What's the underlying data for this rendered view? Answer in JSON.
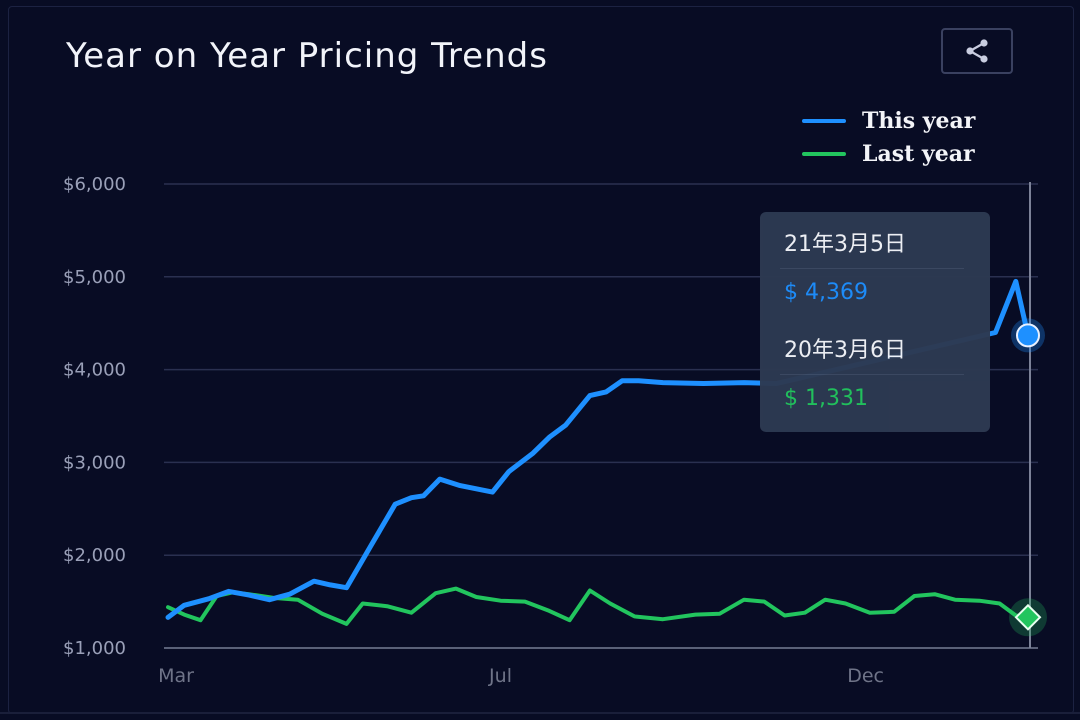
{
  "header": {
    "title": "Year on Year Pricing Trends"
  },
  "share_button": {
    "icon": "share-icon"
  },
  "legend": [
    {
      "label": "This year",
      "color": "#1e90ff"
    },
    {
      "label": "Last year",
      "color": "#22c55e"
    }
  ],
  "tooltip": {
    "this_year_date": "21年3月5日",
    "this_year_value": "$ 4,369",
    "last_year_date": "20年3月6日",
    "last_year_value": "$ 1,331"
  },
  "chart_data": {
    "type": "line",
    "y_ticks": [
      "$6,000",
      "$5,000",
      "$4,000",
      "$3,000",
      "$2,000",
      "$1,000"
    ],
    "ylim": [
      1000,
      6000
    ],
    "x_ticks": [
      {
        "label": "Mar",
        "x": 0
      },
      {
        "label": "Jul",
        "x": 4
      },
      {
        "label": "Dec",
        "x": 8.5
      }
    ],
    "xlim": [
      0,
      10.6
    ],
    "grid": true,
    "legend_position": "top-right",
    "series": [
      {
        "name": "This year",
        "color": "#1e90ff",
        "points": [
          [
            0,
            1330
          ],
          [
            0.2,
            1460
          ],
          [
            0.5,
            1530
          ],
          [
            0.75,
            1610
          ],
          [
            1.0,
            1570
          ],
          [
            1.25,
            1520
          ],
          [
            1.5,
            1580
          ],
          [
            1.8,
            1720
          ],
          [
            2.0,
            1680
          ],
          [
            2.2,
            1650
          ],
          [
            2.5,
            2100
          ],
          [
            2.8,
            2550
          ],
          [
            3.0,
            2620
          ],
          [
            3.15,
            2640
          ],
          [
            3.35,
            2820
          ],
          [
            3.6,
            2750
          ],
          [
            4.0,
            2680
          ],
          [
            4.2,
            2900
          ],
          [
            4.5,
            3100
          ],
          [
            4.7,
            3270
          ],
          [
            4.9,
            3400
          ],
          [
            5.2,
            3720
          ],
          [
            5.4,
            3760
          ],
          [
            5.6,
            3880
          ],
          [
            5.8,
            3880
          ],
          [
            6.1,
            3860
          ],
          [
            6.6,
            3850
          ],
          [
            7.1,
            3860
          ],
          [
            7.5,
            3850
          ],
          [
            10.2,
            4400
          ],
          [
            10.45,
            4950
          ],
          [
            10.6,
            4369
          ]
        ]
      },
      {
        "name": "Last year",
        "color": "#22c55e",
        "points": [
          [
            0,
            1440
          ],
          [
            0.2,
            1360
          ],
          [
            0.4,
            1300
          ],
          [
            0.6,
            1560
          ],
          [
            0.8,
            1600
          ],
          [
            1.0,
            1580
          ],
          [
            1.3,
            1540
          ],
          [
            1.6,
            1520
          ],
          [
            1.9,
            1370
          ],
          [
            2.2,
            1260
          ],
          [
            2.4,
            1480
          ],
          [
            2.7,
            1450
          ],
          [
            3.0,
            1380
          ],
          [
            3.3,
            1590
          ],
          [
            3.55,
            1640
          ],
          [
            3.8,
            1550
          ],
          [
            4.1,
            1510
          ],
          [
            4.4,
            1500
          ],
          [
            4.7,
            1400
          ],
          [
            4.95,
            1300
          ],
          [
            5.2,
            1620
          ],
          [
            5.45,
            1480
          ],
          [
            5.75,
            1340
          ],
          [
            6.1,
            1310
          ],
          [
            6.5,
            1360
          ],
          [
            6.8,
            1370
          ],
          [
            7.1,
            1520
          ],
          [
            7.35,
            1500
          ],
          [
            7.6,
            1350
          ],
          [
            7.85,
            1380
          ],
          [
            8.1,
            1520
          ],
          [
            8.35,
            1480
          ],
          [
            8.65,
            1380
          ],
          [
            8.95,
            1390
          ],
          [
            9.2,
            1560
          ],
          [
            9.45,
            1580
          ],
          [
            9.7,
            1520
          ],
          [
            10.0,
            1510
          ],
          [
            10.25,
            1480
          ],
          [
            10.45,
            1350
          ],
          [
            10.6,
            1331
          ]
        ]
      }
    ]
  }
}
